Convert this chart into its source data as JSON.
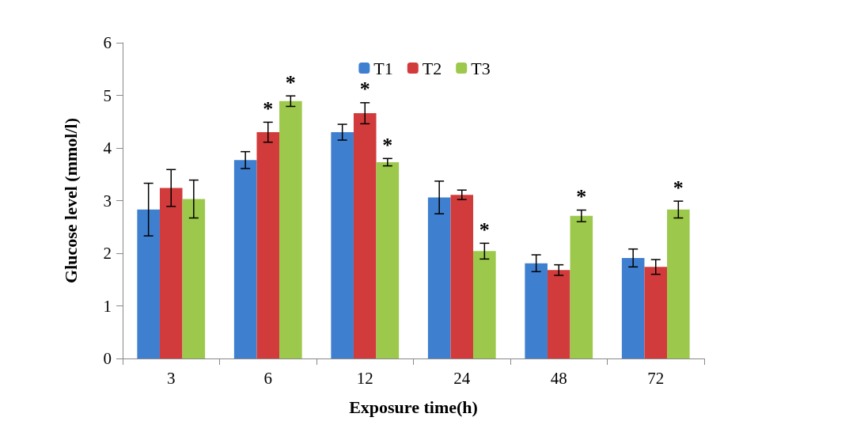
{
  "chart_data": {
    "type": "bar",
    "xlabel": "Exposure time(h)",
    "ylabel": "Glucose level (mmol/l)",
    "categories": [
      "3",
      "6",
      "12",
      "24",
      "48",
      "72"
    ],
    "series": [
      {
        "name": "T1",
        "color": "#3f7fd0",
        "values": [
          2.83,
          3.77,
          4.3,
          3.06,
          1.81,
          1.91
        ],
        "errors": [
          0.5,
          0.16,
          0.15,
          0.31,
          0.16,
          0.17
        ],
        "value_labels": [
          null,
          null,
          null,
          null,
          null,
          null
        ]
      },
      {
        "name": "T2",
        "color": "#d23b3b",
        "values": [
          3.24,
          4.3,
          4.66,
          3.11,
          1.68,
          1.74
        ],
        "errors": [
          0.35,
          0.19,
          0.2,
          0.09,
          0.1,
          0.14
        ],
        "value_labels": [
          null,
          "*",
          "*",
          null,
          null,
          null
        ]
      },
      {
        "name": "T3",
        "color": "#9cc84b",
        "values": [
          3.03,
          4.89,
          3.73,
          2.04,
          2.71,
          2.83
        ],
        "errors": [
          0.36,
          0.1,
          0.07,
          0.15,
          0.11,
          0.16
        ],
        "value_labels": [
          null,
          "*",
          "*",
          "*",
          "*",
          "*"
        ]
      }
    ],
    "ylim": [
      0,
      6
    ],
    "yticks": [
      0,
      1,
      2,
      3,
      4,
      5,
      6
    ],
    "grid": false,
    "legend": "top"
  }
}
